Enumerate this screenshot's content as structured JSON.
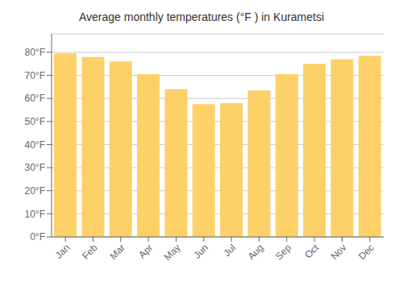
{
  "chart_data": {
    "type": "bar",
    "title": "Average monthly temperatures (°F ) in Kurametsi",
    "categories": [
      "Jan",
      "Feb",
      "Mar",
      "Apr",
      "May",
      "Jun",
      "Jul",
      "Aug",
      "Sep",
      "Oct",
      "Nov",
      "Dec"
    ],
    "values": [
      79.5,
      78.0,
      76.0,
      70.5,
      64.0,
      57.5,
      58.0,
      63.5,
      70.5,
      75.0,
      77.0,
      78.5
    ],
    "color": "#FDD068",
    "ylim": [
      0,
      88
    ],
    "yticks": [
      {
        "value": 0,
        "label": "0°F"
      },
      {
        "value": 10,
        "label": "10°F"
      },
      {
        "value": 20,
        "label": "20°F"
      },
      {
        "value": 30,
        "label": "30°F"
      },
      {
        "value": 40,
        "label": "40°F"
      },
      {
        "value": 50,
        "label": "50°F"
      },
      {
        "value": 60,
        "label": "60°F"
      },
      {
        "value": 70,
        "label": "70°F"
      },
      {
        "value": 80,
        "label": "80°F"
      }
    ],
    "grid": true
  }
}
